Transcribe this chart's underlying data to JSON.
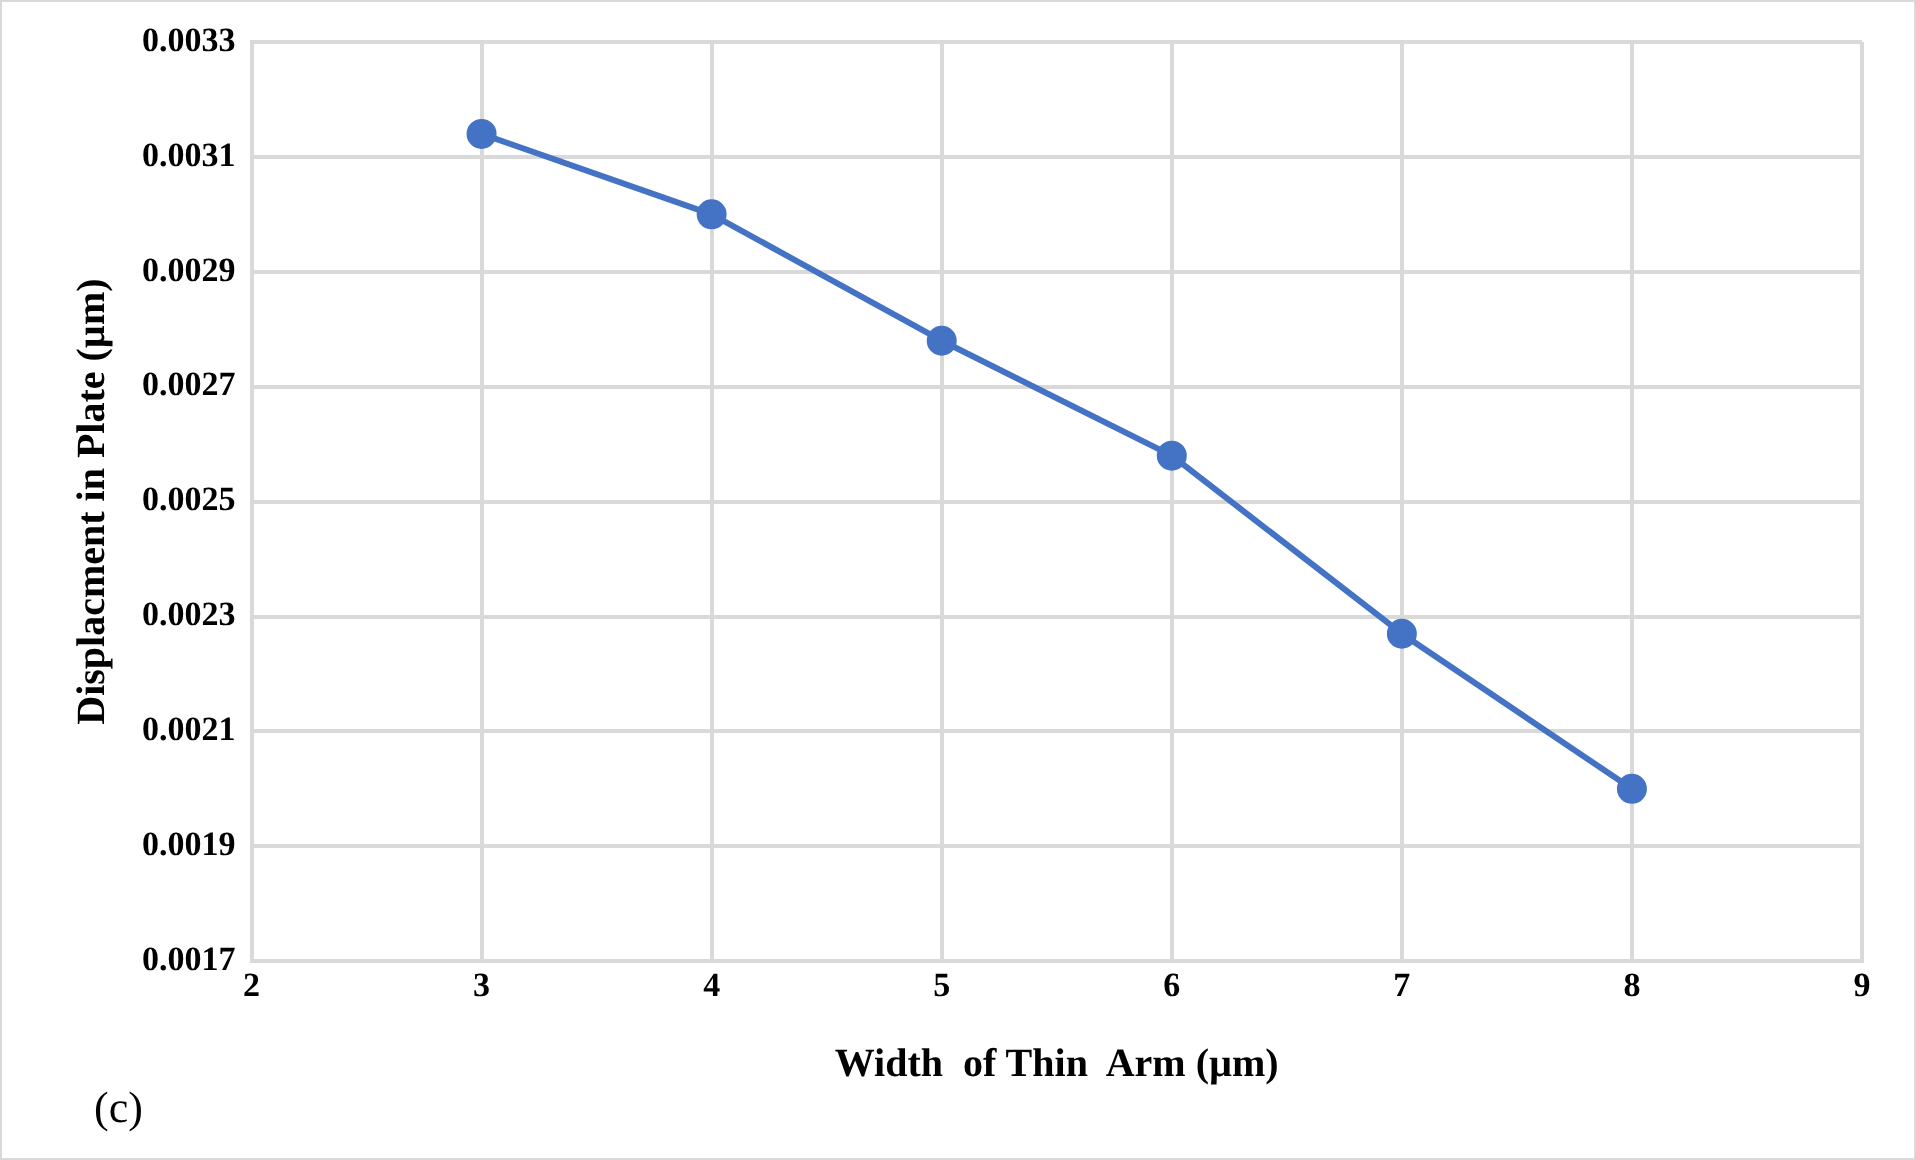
{
  "chart_data": {
    "type": "line",
    "xlabel": "Width  of Thin  Arm (µm)",
    "ylabel": "Displacment in Plate (µm)",
    "x": [
      3,
      4,
      5,
      6,
      7,
      8
    ],
    "series": [
      {
        "color": "#4472c4",
        "values": [
          0.00314,
          0.003,
          0.00278,
          0.00258,
          0.00227,
          0.002
        ]
      }
    ],
    "xlim": [
      2,
      9
    ],
    "xticks": [
      2,
      3,
      4,
      5,
      6,
      7,
      8,
      9
    ],
    "ylim": [
      0.0017,
      0.0033
    ],
    "yticks": [
      0.0017,
      0.0019,
      0.0021,
      0.0023,
      0.0025,
      0.0027,
      0.0029,
      0.0031,
      0.0033
    ],
    "grid": true,
    "legend": false,
    "marker": "circle",
    "line_style": "solid",
    "annotations": [
      "(c)"
    ]
  }
}
